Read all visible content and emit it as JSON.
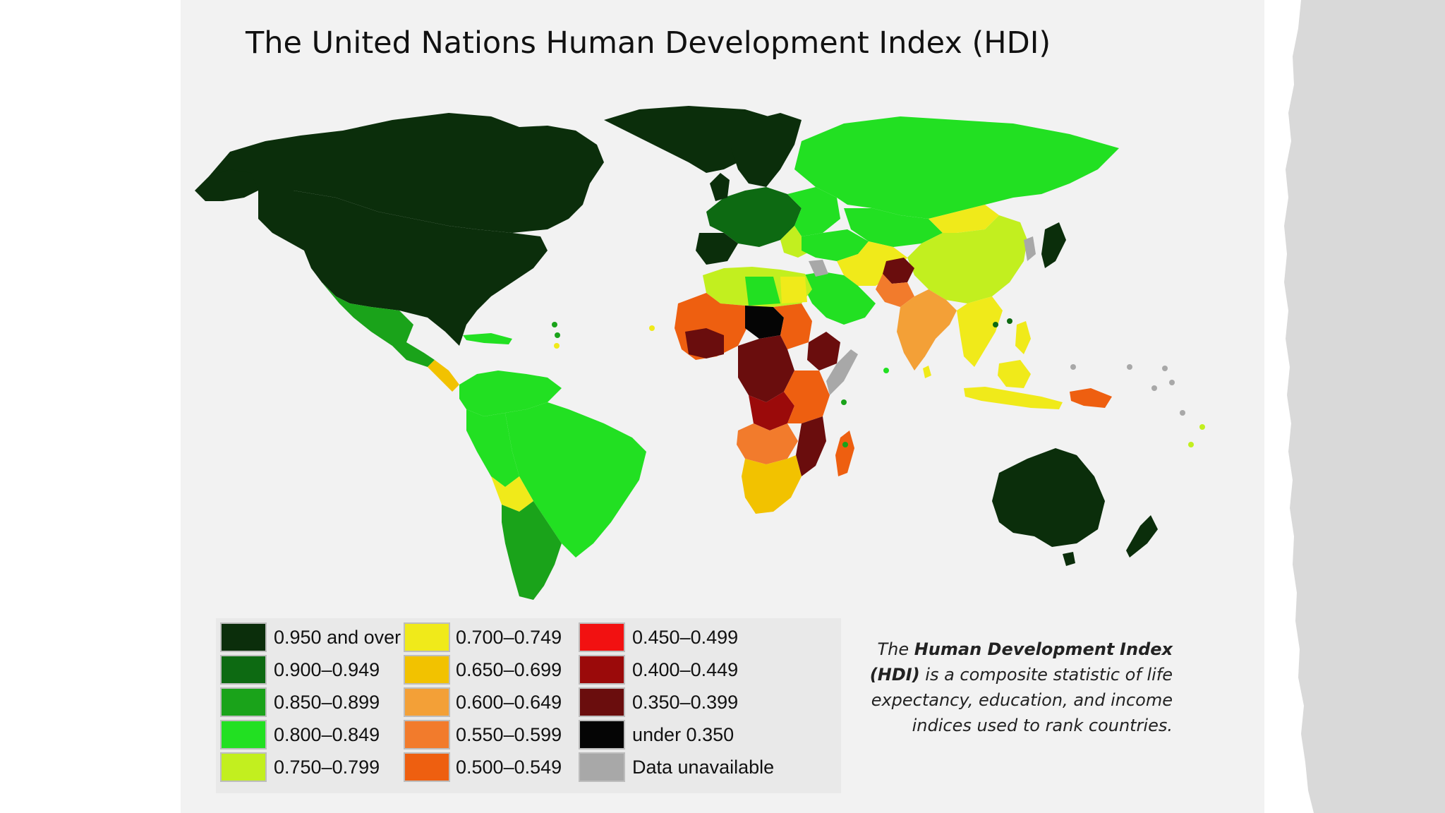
{
  "title": "The United Nations Human Development Index (HDI)",
  "legend": [
    {
      "label": "0.950 and over",
      "color": "#0b2e0b"
    },
    {
      "label": "0.900–0.949",
      "color": "#0d6a12"
    },
    {
      "label": "0.850–0.899",
      "color": "#1aa31a"
    },
    {
      "label": "0.800–0.849",
      "color": "#22e022"
    },
    {
      "label": "0.750–0.799",
      "color": "#c2ef1f"
    },
    {
      "label": "0.700–0.749",
      "color": "#f0ea1a"
    },
    {
      "label": "0.650–0.699",
      "color": "#f2c200"
    },
    {
      "label": "0.600–0.649",
      "color": "#f3a037"
    },
    {
      "label": "0.550–0.599",
      "color": "#f27b2c"
    },
    {
      "label": "0.500–0.549",
      "color": "#ee5f10"
    },
    {
      "label": "0.450–0.499",
      "color": "#f21111"
    },
    {
      "label": "0.400–0.449",
      "color": "#9b0a0a"
    },
    {
      "label": "0.350–0.399",
      "color": "#6a0d0d"
    },
    {
      "label": "under 0.350",
      "color": "#050505"
    },
    {
      "label": "Data unavailable",
      "color": "#a8a8a8"
    }
  ],
  "description": {
    "prefix": "The ",
    "bold1": "Human Development",
    "bold2": "Index (HDI)",
    "rest": " is a composite statistic of life expectancy, education, and income  indices used to rank countries."
  },
  "colors": {
    "background": "#f2f2f2",
    "page": "#ffffff",
    "torn_edge": "#d9d9d9",
    "ocean": "#f2f2f2"
  }
}
